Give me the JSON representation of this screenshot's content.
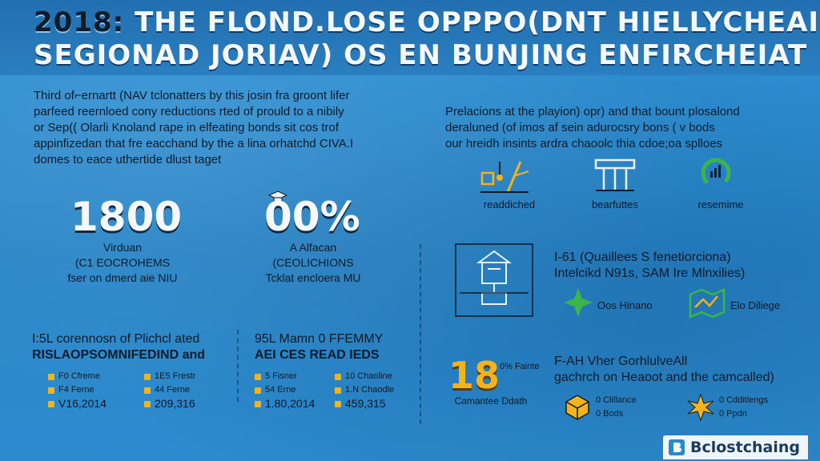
{
  "header": {
    "year": "2018:",
    "title_line1": "THE FLOND.LOSE OPPPO(DNT HIELLYCHEAI",
    "title_line2": "SEGIONAD JORIAV) OS EN BUNJING ENFIRCHEIAT"
  },
  "intro_left": [
    "Third of⌐ernartt (NAV tclonatters by this josin fra groont lifer",
    "parfeed reernloed cony reductions rted of prould to a nibily",
    "or Sep(( Olarli Knoland rape in elfeating bonds sit cos trof",
    "appinfizedan that fre eacchand by the a lina orhatchd CIVA.I",
    "domes to eace uthertide dlust taget"
  ],
  "intro_right": [
    "Prelacions at the playion) opr) and that bount plosalond",
    "deraluned (of imos af sein adurocsry bons ( v bods",
    "our hreidh insints ardra chaoolc thia cdoe;oa splloes"
  ],
  "stats": [
    {
      "value": "1800",
      "lines": [
        "Virduan",
        "(C1 EOCROHEMS",
        "fser on dmerd aie NIU"
      ]
    },
    {
      "value": "00%",
      "lines": [
        "A Alfacan",
        "(CEOLICHIONS",
        "Tcklat encloera MU"
      ]
    }
  ],
  "icons": [
    {
      "icon": "crane-icon",
      "label": "readdiched"
    },
    {
      "icon": "bridge-icon",
      "label": "bearfuttes"
    },
    {
      "icon": "gauge-icon",
      "label": "resemime"
    }
  ],
  "left_sections": [
    {
      "title1": "I:5L corennosn of Plichcl ated",
      "title2": "RISLAOPSOMNIFEDIND and",
      "col1": [
        "F0 Cfreme",
        "F4 Ferne",
        "V16,2014"
      ],
      "col2": [
        "1E5 Frestr",
        "44 Ferne",
        "209,316"
      ]
    },
    {
      "title1": "95L Mamn 0 FFEMMY",
      "title2": "AEI CES READ IEDS",
      "col1": [
        "5 Fisner",
        "54 Erne",
        "1.80,2014"
      ],
      "col2": [
        "10 Chaoline",
        "1.N Chaodle",
        "459,315"
      ]
    }
  ],
  "diagram": {
    "icon": "building-diagram-icon",
    "title1": "I-61 (Quaillees S fenetiorciona)",
    "title2": "Intelcikd N91s, SAM Ire Mlnxilies)",
    "items": [
      {
        "icon": "star-icon",
        "label": "Oos Hinano"
      },
      {
        "icon": "map-icon",
        "label": "Elo Diliege"
      }
    ]
  },
  "bottom": {
    "value": "18",
    "value_note": "0% Fainte",
    "value_label": "Camantee Ddath",
    "title1": "F-AH Vher GorhlulveAll",
    "title2": "gachrch on Heaoot and the camcalled)",
    "items": [
      {
        "icon": "cube-icon",
        "lines": [
          "0 Clillance",
          "0 Bods"
        ]
      },
      {
        "icon": "starburst-icon",
        "lines": [
          "0 Cdditlengs",
          "0 Ppdn"
        ]
      }
    ]
  },
  "logo": {
    "name": "Bclostchaing"
  },
  "colors": {
    "accent": "#f2b31c",
    "background": "#2a88cc",
    "green": "#3ab54a"
  }
}
